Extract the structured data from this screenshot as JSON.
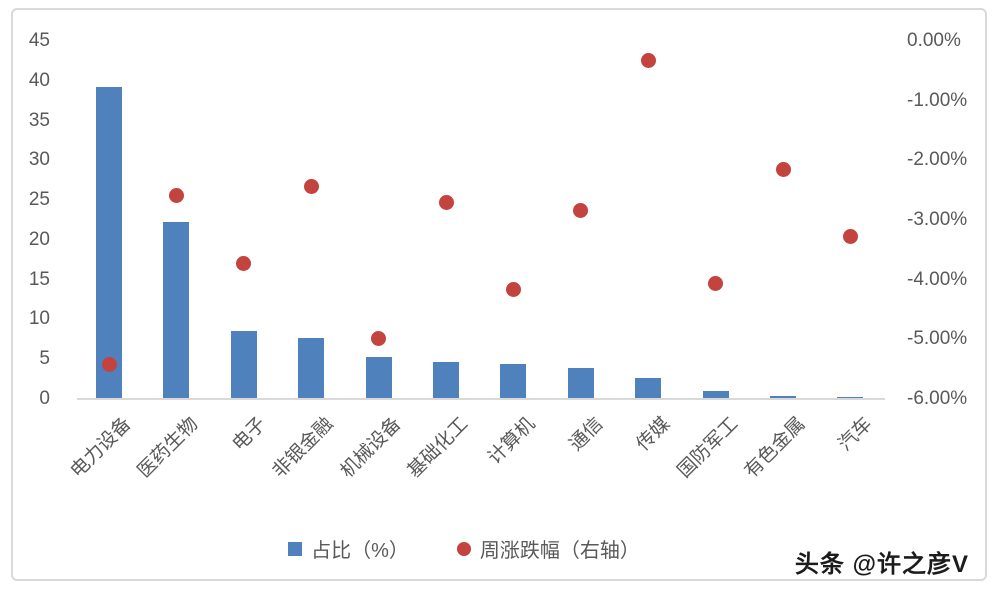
{
  "watermark": "头条 @许之彦V",
  "legend": {
    "bar_label": "占比（%）",
    "dot_label": "周涨跌幅（右轴）"
  },
  "colors": {
    "bar": "#4F81BD",
    "dot": "#C3433F",
    "axis_text": "#595959",
    "frame_border": "#D9D9D9"
  },
  "chart_data": {
    "type": "bar",
    "subtype": "combo-bar-scatter",
    "title": "",
    "categories": [
      "电力设备",
      "医药生物",
      "电子",
      "非银金融",
      "机械设备",
      "基础化工",
      "计算机",
      "通信",
      "传媒",
      "国防军工",
      "有色金属",
      "汽车"
    ],
    "series": [
      {
        "name": "占比（%）",
        "type": "bar",
        "axis": "left",
        "color": "#4F81BD",
        "values": [
          39.2,
          22.2,
          8.5,
          7.7,
          5.3,
          4.6,
          4.4,
          3.9,
          2.6,
          1.0,
          0.4,
          0.3
        ]
      },
      {
        "name": "周涨跌幅（右轴）",
        "type": "scatter",
        "axis": "right",
        "color": "#C3433F",
        "values": [
          -5.42,
          -2.59,
          -3.73,
          -2.44,
          -4.98,
          -2.71,
          -4.16,
          -2.84,
          -0.33,
          -4.06,
          -2.16,
          -3.28
        ]
      }
    ],
    "left_axis": {
      "min": 0,
      "max": 45,
      "tick_step": 5,
      "ticks": [
        45,
        40,
        35,
        30,
        25,
        20,
        15,
        10,
        5,
        0
      ]
    },
    "right_axis": {
      "min": -6,
      "max": 0,
      "ticks": [
        "0.00%",
        "-1.00%",
        "-2.00%",
        "-3.00%",
        "-4.00%",
        "-5.00%",
        "-6.00%"
      ]
    },
    "grid": false,
    "legend_position": "bottom",
    "x_label_rotation_deg": 45
  }
}
